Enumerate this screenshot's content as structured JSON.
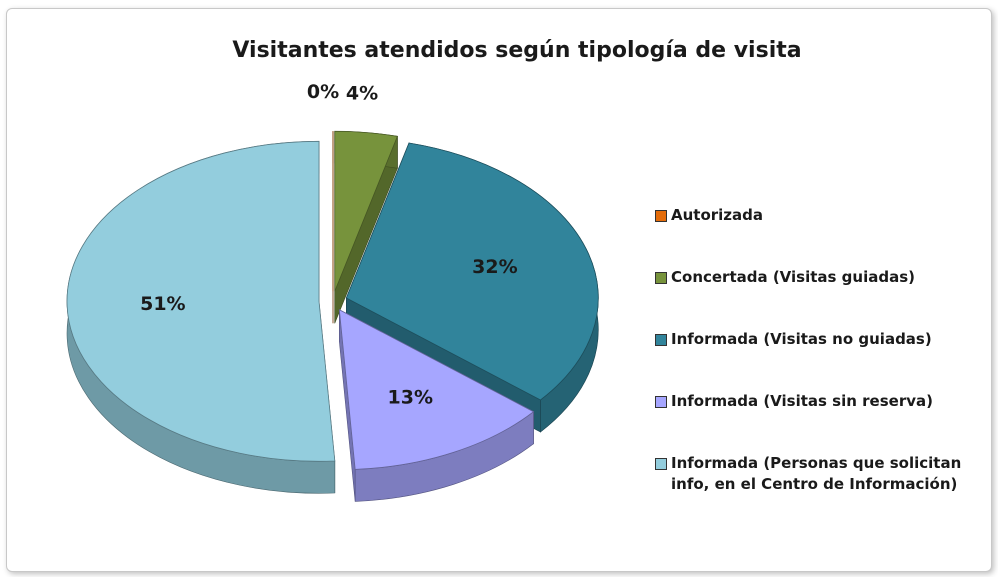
{
  "chart_data": {
    "type": "pie",
    "title": "Visitantes atendidos según tipología de visita",
    "categories": [
      "Autorizada",
      "Concertada (Visitas guiadas)",
      "Informada (Visitas no guiadas)",
      "Informada (Visitas sin reserva)",
      "Informada (Personas que solicitan info, en el Centro de Información)"
    ],
    "values": [
      0,
      4,
      32,
      13,
      51
    ],
    "value_labels": [
      "0%",
      "4%",
      "32%",
      "13%",
      "51%"
    ],
    "colors": [
      "#e46c0a",
      "#77933c",
      "#31849b",
      "#a6a6ff",
      "#93cddd"
    ],
    "legend": "right"
  }
}
